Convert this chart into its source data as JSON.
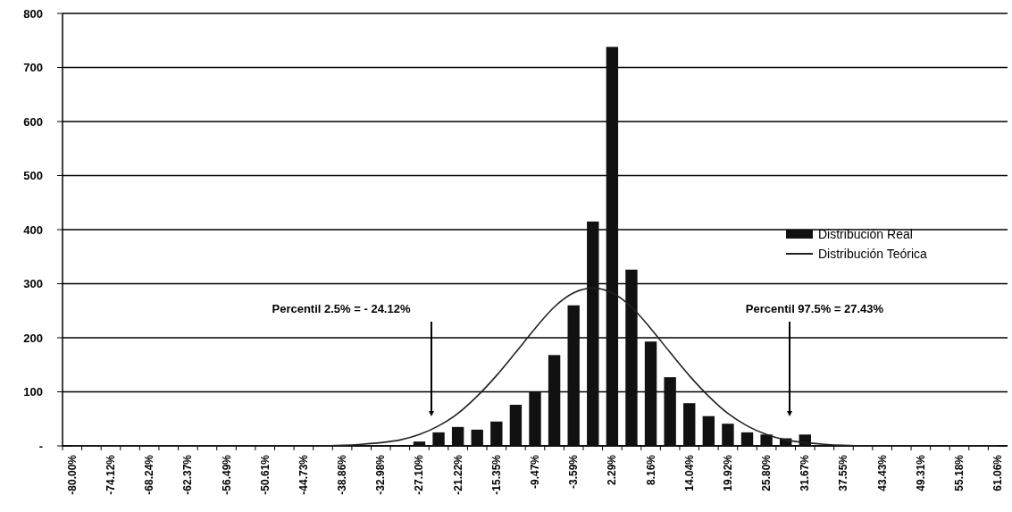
{
  "chart_data": {
    "type": "bar",
    "categories": [
      "-80.00%",
      null,
      "-74.12%",
      null,
      "-68.24%",
      null,
      "-62.37%",
      null,
      "-56.49%",
      null,
      "-50.61%",
      null,
      "-44.73%",
      null,
      "-38.86%",
      null,
      "-32.98%",
      null,
      "-27.10%",
      null,
      "-21.22%",
      null,
      "-15.35%",
      null,
      "-9.47%",
      null,
      "-3.59%",
      null,
      "2.29%",
      null,
      "8.16%",
      null,
      "14.04%",
      null,
      "19.92%",
      null,
      "25.80%",
      null,
      "31.67%",
      null,
      "37.55%",
      null,
      "43.43%",
      null,
      "49.31%",
      null,
      "55.18%",
      null,
      "61.06%"
    ],
    "series": [
      {
        "name": "Distribución Real",
        "color": "#111111",
        "values": [
          0,
          0,
          0,
          0,
          0,
          0,
          0,
          0,
          0,
          0,
          0,
          0,
          0,
          0,
          0,
          0,
          0,
          null,
          8,
          25,
          35,
          30,
          45,
          76,
          100,
          168,
          260,
          415,
          738,
          326,
          193,
          127,
          79,
          55,
          41,
          25,
          21,
          14,
          21,
          null,
          null,
          null,
          1,
          1,
          0,
          0,
          0,
          0,
          0
        ]
      },
      {
        "name": "Distribución Teórica",
        "type": "line",
        "color": "#222222",
        "values": [
          0,
          0,
          0,
          0,
          0,
          0,
          0,
          0,
          0,
          0,
          0,
          0,
          0,
          0,
          1,
          3,
          6,
          11,
          21,
          37,
          60,
          92,
          130,
          173,
          217,
          257,
          283,
          292,
          283,
          257,
          217,
          173,
          130,
          92,
          60,
          37,
          21,
          11,
          6,
          3,
          1,
          0,
          0,
          0,
          0,
          0,
          0,
          0,
          0
        ]
      }
    ],
    "ylim": [
      0,
      800
    ],
    "yticks": [
      {
        "value": 0,
        "label": "-"
      },
      100,
      200,
      300,
      400,
      500,
      600,
      700,
      800
    ],
    "grid": "y",
    "legend": "right",
    "annotations": [
      "Percentil 2.5% = - 24.12%",
      "Percentil 97.5% = 27.43%"
    ]
  }
}
